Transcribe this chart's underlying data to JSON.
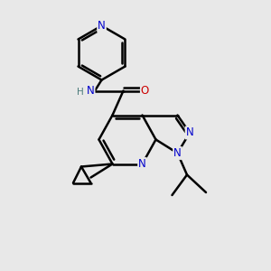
{
  "background_color": "#e8e8e8",
  "bond_color": "#000000",
  "bond_width": 1.8,
  "atom_colors": {
    "N": "#0000cc",
    "O": "#cc0000",
    "C": "#000000",
    "H": "#4a7a7a"
  },
  "font_size": 8.5,
  "fig_width": 3.0,
  "fig_height": 3.0,
  "dpi": 100
}
